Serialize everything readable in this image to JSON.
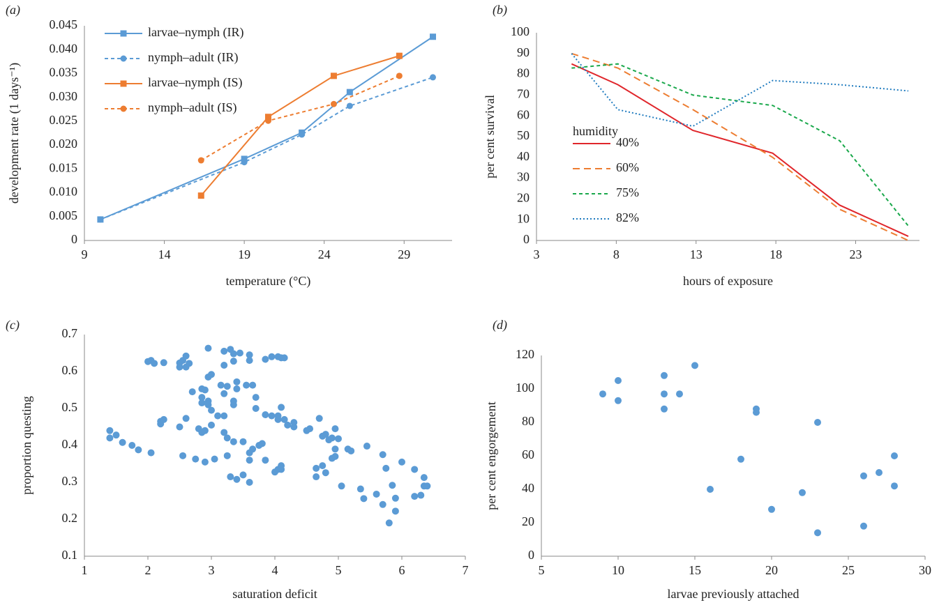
{
  "chart_data": [
    {
      "type": "line",
      "panel_label": "(a)",
      "x_label": "temperature (°C)",
      "y_label": "development rate (1 days⁻¹)",
      "xlim": [
        9,
        32
      ],
      "xticks": [
        9,
        14,
        19,
        24,
        29
      ],
      "ylim": [
        0,
        0.045
      ],
      "yticks": [
        0,
        0.005,
        {
          "value": 0.01,
          "label": "0.010"
        },
        0.015,
        {
          "value": 0.02,
          "label": "0.020"
        },
        0.025,
        {
          "value": 0.03,
          "label": "0.030"
        },
        0.035,
        {
          "value": 0.04,
          "label": "0.040"
        },
        0.045
      ],
      "grid": false,
      "legend": "top-left",
      "series": [
        {
          "name": "larvae–nymph (IR)",
          "color": "#5b9bd5",
          "dash": "solid",
          "marker": "square",
          "x": [
            10,
            19,
            22.6,
            25.6,
            30.8
          ],
          "values": [
            0.0044,
            0.0171,
            0.0226,
            0.0311,
            0.0427
          ]
        },
        {
          "name": "nymph–adult (IR)",
          "color": "#5b9bd5",
          "dash": "dashed",
          "marker": "circle",
          "x": [
            10,
            19,
            22.6,
            25.6,
            30.8
          ],
          "values": [
            0.0044,
            0.0164,
            0.0222,
            0.0282,
            0.0342
          ]
        },
        {
          "name": "larvae–nymph (IS)",
          "color": "#ed7d31",
          "dash": "solid",
          "marker": "square",
          "x": [
            16.3,
            20.5,
            24.6,
            28.7
          ],
          "values": [
            0.0094,
            0.0259,
            0.0345,
            0.0387
          ]
        },
        {
          "name": "nymph–adult (IS)",
          "color": "#ed7d31",
          "dash": "dashed",
          "marker": "circle",
          "x": [
            16.3,
            20.5,
            24.6,
            28.7
          ],
          "values": [
            0.0168,
            0.0251,
            0.0286,
            0.0345
          ]
        }
      ]
    },
    {
      "type": "line",
      "panel_label": "(b)",
      "x_label": "hours of exposure",
      "y_label": "per cent survival",
      "xlim": [
        3,
        27
      ],
      "xticks": [
        3,
        8,
        13,
        18,
        23
      ],
      "ylim": [
        0,
        100
      ],
      "yticks": [
        0,
        10,
        20,
        30,
        40,
        50,
        60,
        70,
        80,
        90,
        100
      ],
      "grid": false,
      "legend": "left",
      "legend_title": "humidity",
      "series": [
        {
          "name": "40%",
          "color": "#e0262b",
          "dash": "solid",
          "x": [
            5.2,
            8.1,
            12.8,
            17.8,
            22,
            26.3
          ],
          "values": [
            85,
            75,
            53,
            42,
            17,
            2
          ]
        },
        {
          "name": "60%",
          "color": "#ed7d31",
          "dash": "long-dashed",
          "x": [
            5.2,
            8.1,
            12.8,
            17.8,
            22,
            26.3
          ],
          "values": [
            90,
            83,
            63,
            40,
            15,
            0
          ]
        },
        {
          "name": "75%",
          "color": "#19a84b",
          "dash": "dashed",
          "x": [
            5.2,
            8.1,
            12.8,
            17.8,
            22,
            26.3
          ],
          "values": [
            83,
            85,
            70,
            65,
            48,
            7
          ]
        },
        {
          "name": "82%",
          "color": "#1f7bbf",
          "dash": "dotted",
          "x": [
            5.2,
            8.1,
            12.8,
            17.8,
            22,
            26.3
          ],
          "values": [
            90,
            63,
            55,
            77,
            75,
            72
          ]
        }
      ]
    },
    {
      "type": "scatter",
      "panel_label": "(c)",
      "x_label": "saturation deficit",
      "y_label": "proportion questing",
      "xlim": [
        1,
        7
      ],
      "xticks": [
        1,
        2,
        3,
        4,
        5,
        6,
        7
      ],
      "ylim": [
        0.1,
        0.7
      ],
      "yticks": [
        0.1,
        0.2,
        0.3,
        0.4,
        0.5,
        0.6,
        0.7
      ],
      "grid": false,
      "color": "#5b9bd5",
      "x": [
        2.0,
        2.05,
        2.1,
        2.25,
        2.5,
        2.55,
        2.6,
        2.6,
        2.65,
        2.95,
        3.2,
        3.3,
        3.35,
        3.45,
        3.6,
        3.6,
        3.85,
        3.95,
        4.05,
        4.1,
        4.15,
        3.2,
        3.35,
        2.5,
        2.7,
        2.85,
        2.9,
        2.85,
        2.95,
        3.0,
        3.15,
        3.25,
        3.4,
        3.4,
        3.55,
        3.65,
        3.7,
        3.35,
        3.35,
        3.2,
        2.85,
        2.95,
        3.0,
        3.1,
        3.2,
        2.95,
        3.7,
        3.85,
        3.95,
        4.05,
        4.1,
        4.05,
        4.15,
        4.2,
        4.3,
        4.3,
        4.5,
        4.55,
        4.7,
        4.75,
        4.8,
        4.85,
        4.9,
        4.95,
        5.0,
        2.2,
        2.2,
        2.25,
        2.5,
        2.6,
        2.8,
        2.85,
        2.9,
        3.0,
        3.2,
        3.25,
        3.35,
        3.5,
        3.6,
        3.65,
        3.6,
        3.75,
        3.8,
        3.85,
        1.4,
        1.4,
        1.5,
        1.6,
        1.75,
        1.85,
        2.05,
        2.55,
        2.75,
        2.9,
        3.05,
        3.25,
        3.3,
        3.4,
        3.5,
        3.6,
        4.0,
        4.05,
        4.1,
        4.1,
        4.65,
        4.65,
        4.75,
        4.8,
        4.9,
        4.95,
        4.95,
        5.05,
        5.15,
        5.2,
        5.35,
        5.4,
        5.45,
        5.6,
        5.7,
        5.7,
        5.75,
        5.8,
        5.85,
        5.9,
        5.9,
        6.0,
        6.2,
        6.2,
        6.3,
        6.35,
        6.35,
        6.4
      ],
      "values": [
        0.627,
        0.63,
        0.622,
        0.624,
        0.612,
        0.63,
        0.642,
        0.612,
        0.622,
        0.663,
        0.655,
        0.66,
        0.648,
        0.65,
        0.645,
        0.63,
        0.633,
        0.64,
        0.64,
        0.637,
        0.637,
        0.617,
        0.628,
        0.623,
        0.545,
        0.553,
        0.55,
        0.53,
        0.585,
        0.592,
        0.563,
        0.56,
        0.572,
        0.553,
        0.563,
        0.563,
        0.53,
        0.52,
        0.51,
        0.54,
        0.515,
        0.52,
        0.495,
        0.48,
        0.48,
        0.51,
        0.5,
        0.483,
        0.48,
        0.48,
        0.503,
        0.47,
        0.47,
        0.455,
        0.45,
        0.462,
        0.44,
        0.445,
        0.473,
        0.425,
        0.43,
        0.415,
        0.42,
        0.445,
        0.418,
        0.458,
        0.465,
        0.47,
        0.45,
        0.473,
        0.445,
        0.435,
        0.44,
        0.455,
        0.435,
        0.42,
        0.41,
        0.41,
        0.38,
        0.39,
        0.36,
        0.4,
        0.405,
        0.36,
        0.44,
        0.42,
        0.428,
        0.408,
        0.4,
        0.388,
        0.38,
        0.372,
        0.363,
        0.355,
        0.363,
        0.372,
        0.315,
        0.308,
        0.32,
        0.3,
        0.328,
        0.335,
        0.335,
        0.345,
        0.338,
        0.315,
        0.345,
        0.326,
        0.365,
        0.37,
        0.39,
        0.29,
        0.39,
        0.385,
        0.282,
        0.256,
        0.398,
        0.268,
        0.24,
        0.375,
        0.338,
        0.19,
        0.292,
        0.222,
        0.257,
        0.355,
        0.262,
        0.335,
        0.265,
        0.313,
        0.29,
        0.29
      ]
    },
    {
      "type": "scatter",
      "panel_label": "(d)",
      "x_label": "larvae previously attached",
      "y_label": "per cent engorgement",
      "xlim": [
        5,
        30
      ],
      "xticks": [
        5,
        10,
        15,
        20,
        25,
        30
      ],
      "ylim": [
        0,
        120
      ],
      "yticks": [
        0,
        20,
        40,
        60,
        80,
        100,
        120
      ],
      "grid": false,
      "color": "#5b9bd5",
      "x": [
        9,
        10,
        10,
        13,
        13,
        13,
        14,
        15,
        16,
        18,
        19,
        19,
        20,
        22,
        23,
        23,
        26,
        26,
        27,
        28,
        28
      ],
      "values": [
        97,
        105,
        93,
        108,
        97,
        88,
        97,
        114,
        40,
        58,
        88,
        86,
        28,
        38,
        80,
        14,
        48,
        18,
        50,
        60,
        42
      ]
    }
  ]
}
